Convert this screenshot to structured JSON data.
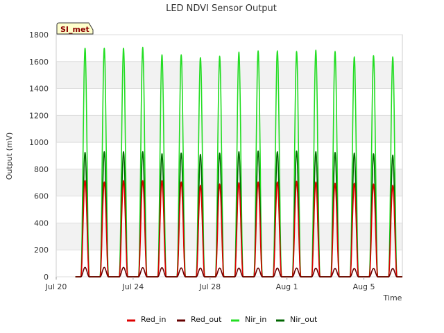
{
  "chart_data": {
    "type": "line",
    "title": "LED NDVI Sensor Output",
    "xlabel": "Time",
    "ylabel": "Output (mV)",
    "badge": "SI_met",
    "ylim": [
      0,
      1800
    ],
    "yticks": [
      0,
      200,
      400,
      600,
      800,
      1000,
      1200,
      1400,
      1600,
      1800
    ],
    "xlim": [
      "2023-07-20",
      "2023-08-07"
    ],
    "xticks": [
      {
        "date": "2023-07-20",
        "label": "Jul 20"
      },
      {
        "date": "2023-07-24",
        "label": "Jul 24"
      },
      {
        "date": "2023-07-28",
        "label": "Jul 28"
      },
      {
        "date": "2023-08-01",
        "label": "Aug 1"
      },
      {
        "date": "2023-08-05",
        "label": "Aug 5"
      }
    ],
    "grid": true,
    "legend_position": "bottom",
    "peak_dates": [
      "2023-07-21",
      "2023-07-22",
      "2023-07-23",
      "2023-07-24",
      "2023-07-25",
      "2023-07-26",
      "2023-07-27",
      "2023-07-28",
      "2023-07-29",
      "2023-07-30",
      "2023-07-31",
      "2023-08-01",
      "2023-08-02",
      "2023-08-03",
      "2023-08-04",
      "2023-08-05",
      "2023-08-06"
    ],
    "series": [
      {
        "name": "Nir_in",
        "color": "#22dd22",
        "daily_max": [
          1700,
          1700,
          1700,
          1705,
          1650,
          1650,
          1630,
          1640,
          1670,
          1680,
          1680,
          1675,
          1685,
          1675,
          1635,
          1645,
          1635
        ]
      },
      {
        "name": "Nir_out",
        "color": "#006600",
        "daily_max": [
          925,
          930,
          930,
          930,
          915,
          920,
          910,
          920,
          930,
          935,
          930,
          935,
          930,
          925,
          920,
          915,
          905
        ]
      },
      {
        "name": "Red_in",
        "color": "#dd0000",
        "daily_max": [
          715,
          705,
          715,
          715,
          715,
          705,
          680,
          690,
          700,
          705,
          705,
          710,
          705,
          695,
          695,
          690,
          680
        ]
      },
      {
        "name": "Red_out",
        "color": "#660000",
        "daily_max": [
          70,
          70,
          70,
          68,
          68,
          66,
          65,
          65,
          65,
          65,
          65,
          65,
          64,
          62,
          62,
          62,
          62
        ]
      }
    ]
  }
}
